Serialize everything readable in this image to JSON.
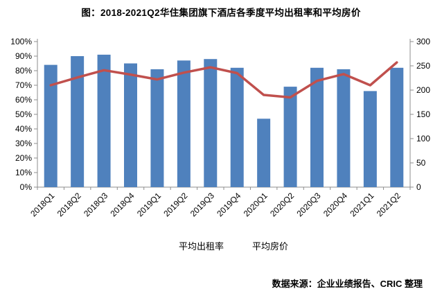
{
  "title": "图：2018-2021Q2华住集团旗下酒店各季度平均出租率和平均房价",
  "source": "数据来源：企业业绩报告、CRIC 整理",
  "chart_data": {
    "type": "bar",
    "subtype": "bar-line-combo",
    "title": "图：2018-2021Q2华住集团旗下酒店各季度平均出租率和平均房价",
    "categories": [
      "2018Q1",
      "2018Q2",
      "2018Q3",
      "2018Q4",
      "2019Q1",
      "2019Q2",
      "2019Q3",
      "2019Q4",
      "2020Q1",
      "2020Q2",
      "2020Q3",
      "2020Q4",
      "2021Q1",
      "2021Q2"
    ],
    "series": [
      {
        "name": "平均出租率",
        "kind": "bar",
        "axis": "left",
        "values": [
          84,
          90,
          91,
          85,
          81,
          87,
          88,
          82,
          47,
          69,
          82,
          81,
          66,
          82
        ]
      },
      {
        "name": "平均房价",
        "kind": "line",
        "axis": "right",
        "values": [
          210,
          226,
          241,
          232,
          222,
          236,
          247,
          235,
          190,
          185,
          219,
          233,
          210,
          257
        ]
      }
    ],
    "left_axis": {
      "min": 0,
      "max": 100,
      "step": 10,
      "tick_labels": [
        "0%",
        "10%",
        "20%",
        "30%",
        "40%",
        "50%",
        "60%",
        "70%",
        "80%",
        "90%",
        "100%"
      ]
    },
    "right_axis": {
      "min": 0,
      "max": 300,
      "step": 50,
      "tick_labels": [
        "0",
        "50",
        "100",
        "150",
        "200",
        "250",
        "300"
      ]
    },
    "grid": false,
    "legend_position": "bottom",
    "colors": {
      "bar": "#4F81BD",
      "line": "#C0504D",
      "axis": "#8C8C8C",
      "text": "#000000"
    }
  }
}
